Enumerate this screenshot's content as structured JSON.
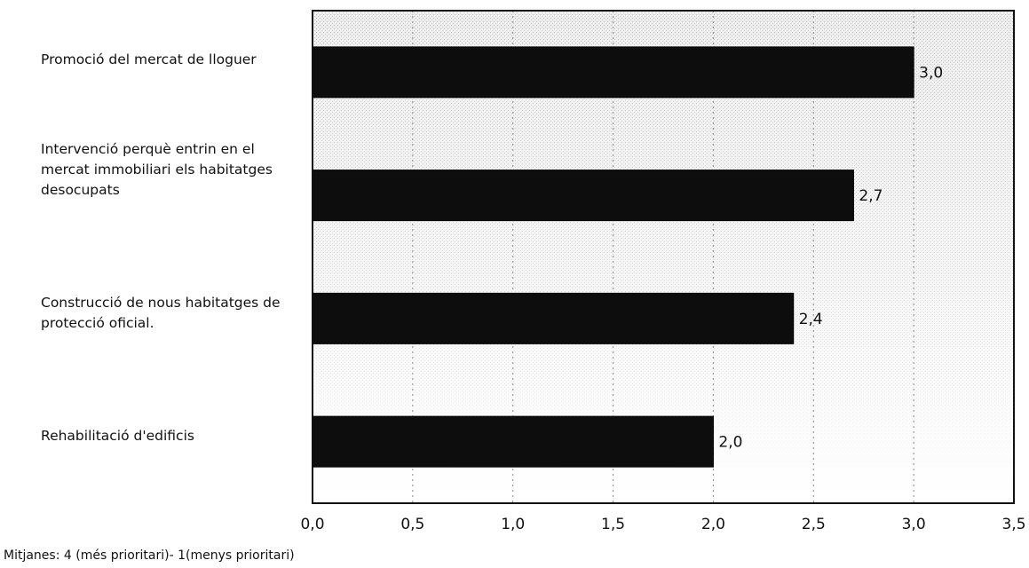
{
  "chart_data": {
    "type": "bar",
    "orientation": "horizontal",
    "categories": [
      "Promoció del mercat de lloguer",
      "Intervenció perquè entrin en el mercat immobiliari els habitatges desocupats",
      "Construcció de nous habitatges de protecció oficial.",
      "Rehabilitació d'edificis"
    ],
    "values": [
      3.0,
      2.7,
      2.4,
      2.0
    ],
    "value_labels": [
      "3,0",
      "2,7",
      "2,4",
      "2,0"
    ],
    "xlim": [
      0,
      3.5
    ],
    "x_ticks": [
      0,
      0.5,
      1.0,
      1.5,
      2.0,
      2.5,
      3.0,
      3.5
    ],
    "x_tick_labels": [
      "0,0",
      "0,5",
      "1,0",
      "1,5",
      "2,0",
      "2,5",
      "3,0",
      "3,5"
    ],
    "grid": "vertical-dotted",
    "bar_color": "#0d0d0d",
    "plot_background": "#e9e9e9"
  },
  "footnote": "Mitjanes: 4 (més prioritari)- 1(menys prioritari)"
}
